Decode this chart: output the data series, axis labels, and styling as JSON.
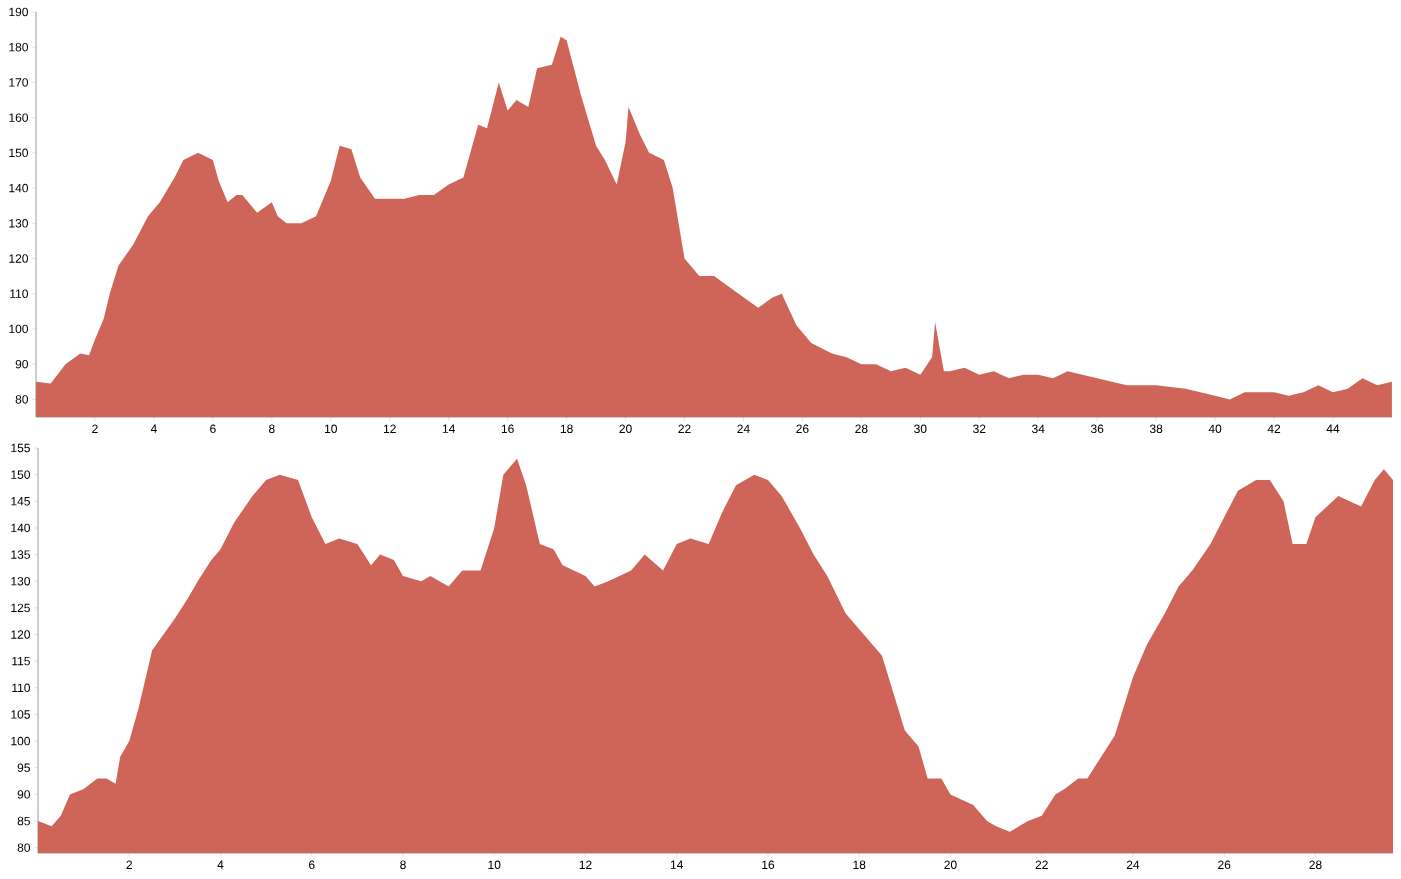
{
  "chart_data": [
    {
      "type": "area",
      "color": "#cf6459",
      "xlim": [
        0,
        46
      ],
      "ylim": [
        75,
        190
      ],
      "xticks": [
        2,
        4,
        6,
        8,
        10,
        12,
        14,
        16,
        18,
        20,
        22,
        24,
        26,
        28,
        30,
        32,
        34,
        36,
        38,
        40,
        42,
        44
      ],
      "yticks": [
        80,
        90,
        100,
        110,
        120,
        130,
        140,
        150,
        160,
        170,
        180,
        190
      ],
      "x": [
        0,
        0.5,
        1,
        1.5,
        1.8,
        2,
        2.3,
        2.5,
        2.8,
        3.3,
        3.8,
        4.2,
        4.7,
        5,
        5.5,
        6,
        6.2,
        6.5,
        6.8,
        7,
        7.5,
        8,
        8.2,
        8.5,
        9,
        9.5,
        10,
        10.3,
        10.7,
        11,
        11.5,
        12,
        12.5,
        13,
        13.5,
        14,
        14.5,
        15,
        15.3,
        15.7,
        16,
        16.3,
        16.7,
        17,
        17.5,
        17.8,
        18,
        18.5,
        19,
        19.3,
        19.7,
        20,
        20.1,
        20.5,
        20.8,
        21.3,
        21.6,
        22,
        22.5,
        23,
        23.5,
        24,
        24.5,
        25,
        25.3,
        25.8,
        26.3,
        27,
        27.5,
        28,
        28.5,
        29,
        29.5,
        30,
        30.4,
        30.5,
        30.8,
        31,
        31.5,
        32,
        32.5,
        33,
        33.5,
        34,
        34.5,
        35,
        36,
        37,
        38,
        39,
        40,
        40.5,
        41,
        42,
        42.5,
        43,
        43.5,
        44,
        44.5,
        45,
        45.5,
        46
      ],
      "values": [
        85,
        84.5,
        90,
        93,
        92.5,
        97,
        103,
        110,
        118,
        124,
        132,
        136,
        143,
        148,
        150,
        148,
        142,
        136,
        138,
        138,
        133,
        136,
        132,
        130,
        130,
        132,
        142,
        152,
        151,
        143,
        137,
        137,
        137,
        138,
        138,
        141,
        143,
        158,
        157,
        170,
        162,
        165,
        163,
        174,
        175,
        183,
        182,
        166,
        152,
        148,
        141,
        153,
        163,
        155,
        150,
        148,
        140,
        120,
        115,
        115,
        112,
        109,
        106,
        109,
        110,
        101,
        96,
        93,
        92,
        90,
        90,
        88,
        89,
        87,
        92,
        102,
        88,
        88,
        89,
        87,
        88,
        86,
        87,
        87,
        86,
        88,
        86,
        84,
        84,
        83,
        81,
        80,
        82,
        82,
        81,
        82,
        84,
        82,
        83,
        86,
        84,
        85
      ]
    },
    {
      "type": "area",
      "color": "#cf6459",
      "xlim": [
        0,
        29.7
      ],
      "ylim": [
        79,
        155
      ],
      "xticks": [
        2,
        4,
        6,
        8,
        10,
        12,
        14,
        16,
        18,
        20,
        22,
        24,
        26,
        28
      ],
      "yticks": [
        80,
        85,
        90,
        95,
        100,
        105,
        110,
        115,
        120,
        125,
        130,
        135,
        140,
        145,
        150,
        155
      ],
      "x": [
        0,
        0.3,
        0.5,
        0.7,
        1,
        1.3,
        1.5,
        1.7,
        1.8,
        2,
        2.2,
        2.5,
        3,
        3.3,
        3.5,
        3.8,
        4,
        4.3,
        4.7,
        5,
        5.3,
        5.7,
        6,
        6.3,
        6.6,
        7,
        7.3,
        7.5,
        7.8,
        8,
        8.4,
        8.6,
        9,
        9.3,
        9.7,
        10,
        10.2,
        10.5,
        10.7,
        11,
        11.3,
        11.5,
        12,
        12.2,
        12.5,
        13,
        13.3,
        13.7,
        14,
        14.3,
        14.7,
        15,
        15.3,
        15.7,
        16,
        16.3,
        16.7,
        17,
        17.3,
        17.7,
        18,
        18.5,
        19,
        19.3,
        19.5,
        19.8,
        20,
        20.5,
        20.8,
        21,
        21.3,
        21.7,
        22,
        22.3,
        22.5,
        22.8,
        23,
        23.3,
        23.6,
        24,
        24.3,
        24.7,
        25,
        25.3,
        25.7,
        26,
        26.3,
        26.7,
        27,
        27.3,
        27.5,
        27.8,
        28,
        28.5,
        29,
        29.3,
        29.5,
        29.7
      ],
      "values": [
        85,
        84,
        86,
        90,
        91,
        93,
        93,
        92,
        97,
        100,
        106,
        117,
        123,
        127,
        130,
        134,
        136,
        141,
        146,
        149,
        150,
        149,
        142,
        137,
        138,
        137,
        133,
        135,
        134,
        131,
        130,
        131,
        129,
        132,
        132,
        140,
        150,
        153,
        148,
        137,
        136,
        133,
        131,
        129,
        130,
        132,
        135,
        132,
        137,
        138,
        137,
        143,
        148,
        150,
        149,
        146,
        140,
        135,
        131,
        124,
        121,
        116,
        102,
        99,
        93,
        93,
        90,
        88,
        85,
        84,
        83,
        85,
        86,
        90,
        91,
        93,
        93,
        97,
        101,
        112,
        118,
        124,
        129,
        132,
        137,
        142,
        147,
        149,
        149,
        145,
        137,
        137,
        142,
        146,
        144,
        149,
        151,
        149
      ]
    }
  ]
}
